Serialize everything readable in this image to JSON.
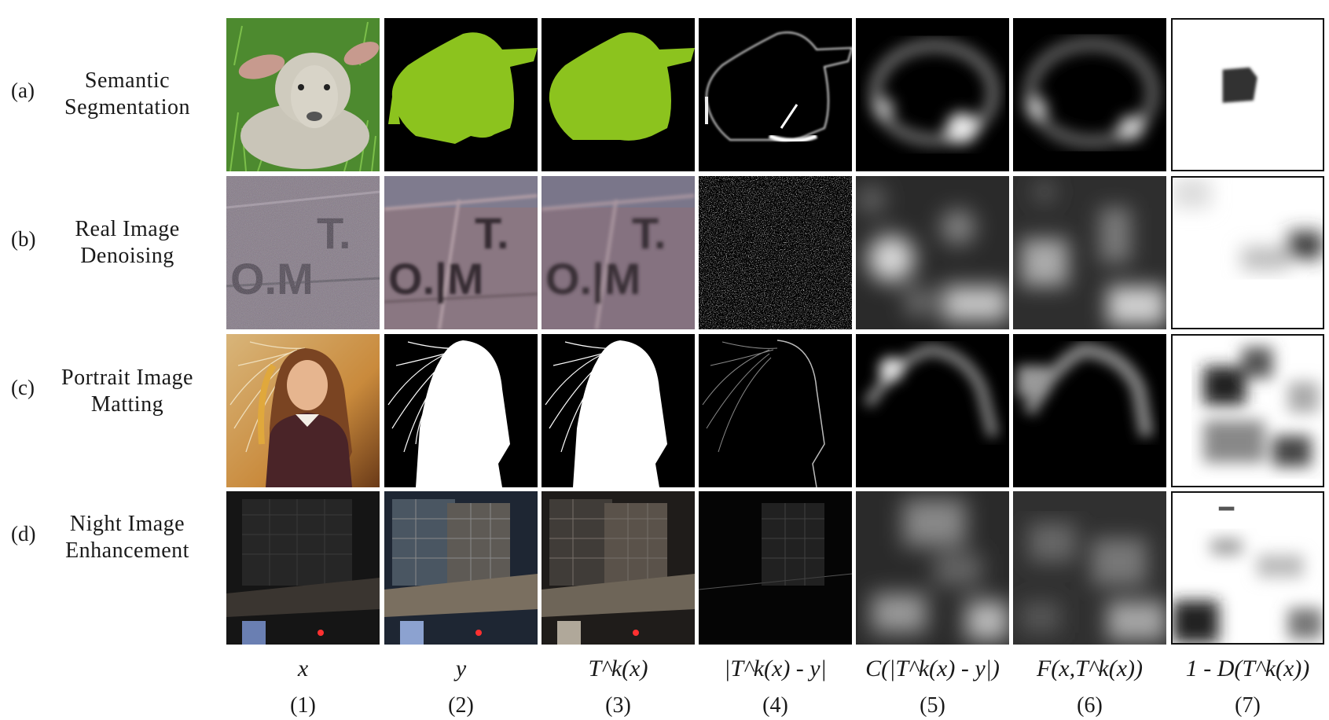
{
  "rows": [
    {
      "letter": "(a)",
      "line1": "Semantic",
      "line2": "Segmentation"
    },
    {
      "letter": "(b)",
      "line1": "Real Image",
      "line2": "Denoising"
    },
    {
      "letter": "(c)",
      "line1": "Portrait Image",
      "line2": "Matting"
    },
    {
      "letter": "(d)",
      "line1": "Night Image",
      "line2": "Enhancement"
    }
  ],
  "columns": [
    {
      "label": "x",
      "number": "(1)"
    },
    {
      "label": "y",
      "number": "(2)"
    },
    {
      "label": "T^k(x)",
      "number": "(3)"
    },
    {
      "label": "|T^k(x) - y|",
      "number": "(4)"
    },
    {
      "label": "C(|T^k(x) - y|)",
      "number": "(5)"
    },
    {
      "label": "F(x,T^k(x))",
      "number": "(6)"
    },
    {
      "label": "1 - D(T^k(x))",
      "number": "(7)"
    }
  ],
  "colors": {
    "segmentation_mask": "#8cc31e",
    "background": "#000000",
    "frame": "#111111"
  }
}
